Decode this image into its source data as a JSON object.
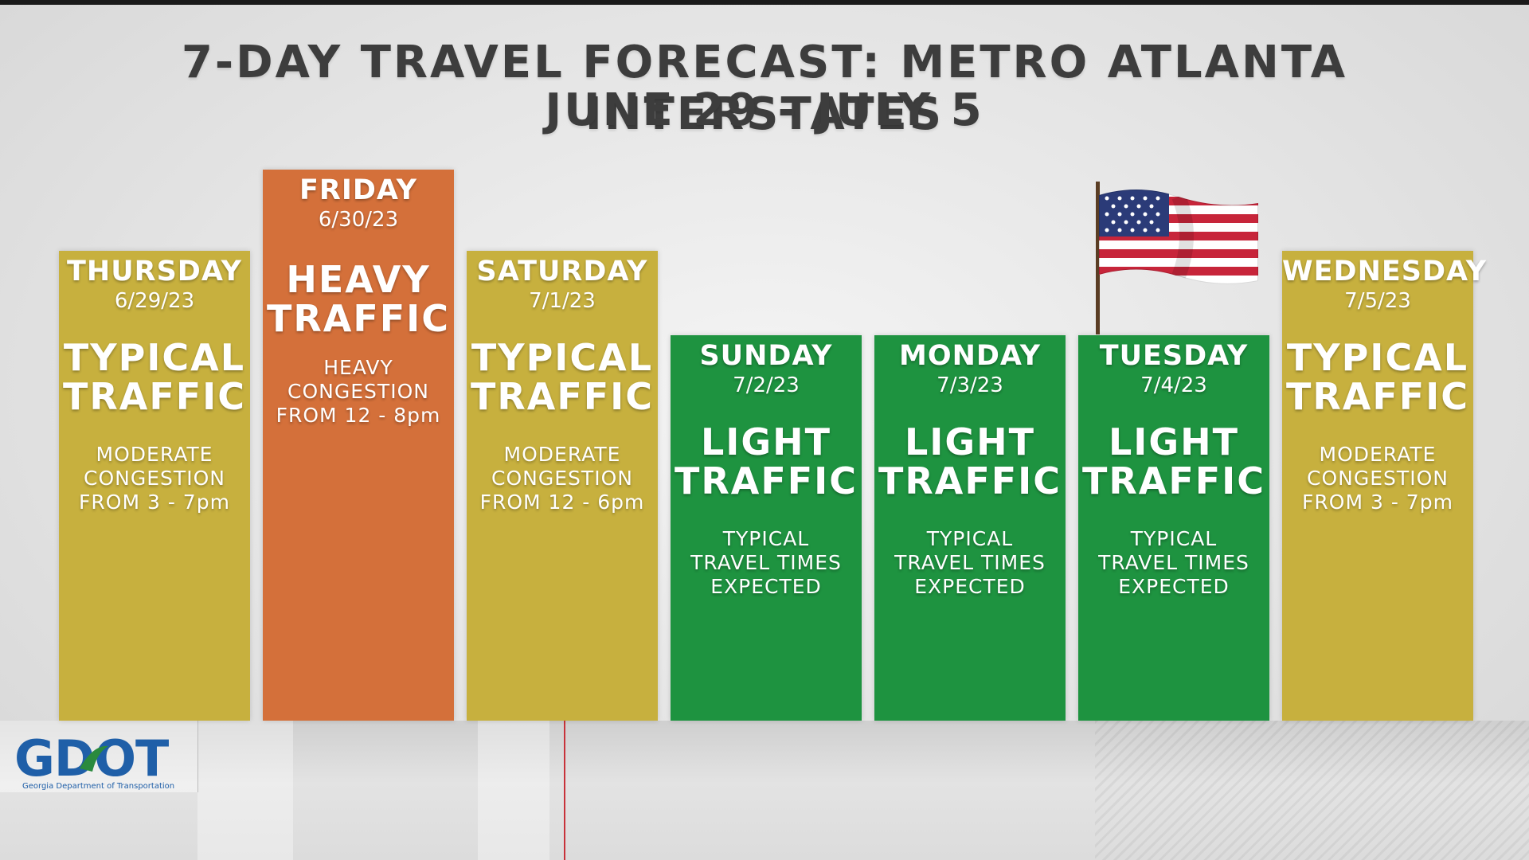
{
  "title": {
    "line1": "7-DAY TRAVEL FORECAST: METRO ATLANTA INTERSTATES",
    "line2": "JUNE 29 - JULY 5"
  },
  "days": [
    {
      "day": "THURSDAY",
      "date": "6/29/23",
      "status_l1": "TYPICAL",
      "status_l2": "TRAFFIC",
      "note_l1": "MODERATE",
      "note_l2": "CONGESTION",
      "note_l3": "FROM 3 - 7pm",
      "color": "#c7b03e"
    },
    {
      "day": "FRIDAY",
      "date": "6/30/23",
      "status_l1": "HEAVY",
      "status_l2": "TRAFFIC",
      "note_l1": "HEAVY",
      "note_l2": "CONGESTION",
      "note_l3": "FROM 12 - 8pm",
      "color": "#d4703a"
    },
    {
      "day": "SATURDAY",
      "date": "7/1/23",
      "status_l1": "TYPICAL",
      "status_l2": "TRAFFIC",
      "note_l1": "MODERATE",
      "note_l2": "CONGESTION",
      "note_l3": "FROM 12 - 6pm",
      "color": "#c7b03e"
    },
    {
      "day": "SUNDAY",
      "date": "7/2/23",
      "status_l1": "LIGHT",
      "status_l2": "TRAFFIC",
      "note_l1": "TYPICAL",
      "note_l2": "TRAVEL TIMES",
      "note_l3": "EXPECTED",
      "color": "#1e9340"
    },
    {
      "day": "MONDAY",
      "date": "7/3/23",
      "status_l1": "LIGHT",
      "status_l2": "TRAFFIC",
      "note_l1": "TYPICAL",
      "note_l2": "TRAVEL TIMES",
      "note_l3": "EXPECTED",
      "color": "#1e9340"
    },
    {
      "day": "TUESDAY",
      "date": "7/4/23",
      "status_l1": "LIGHT",
      "status_l2": "TRAFFIC",
      "note_l1": "TYPICAL",
      "note_l2": "TRAVEL TIMES",
      "note_l3": "EXPECTED",
      "color": "#1e9340"
    },
    {
      "day": "WEDNESDAY",
      "date": "7/5/23",
      "status_l1": "TYPICAL",
      "status_l2": "TRAFFIC",
      "note_l1": "MODERATE",
      "note_l2": "CONGESTION",
      "note_l3": "FROM 3 - 7pm",
      "color": "#c7b03e"
    }
  ],
  "logo": {
    "name": "GDOT",
    "subtitle": "Georgia Department of Transportation",
    "icon": "gdot-logo-icon"
  },
  "decoration": {
    "flag_icon": "us-flag-icon"
  }
}
